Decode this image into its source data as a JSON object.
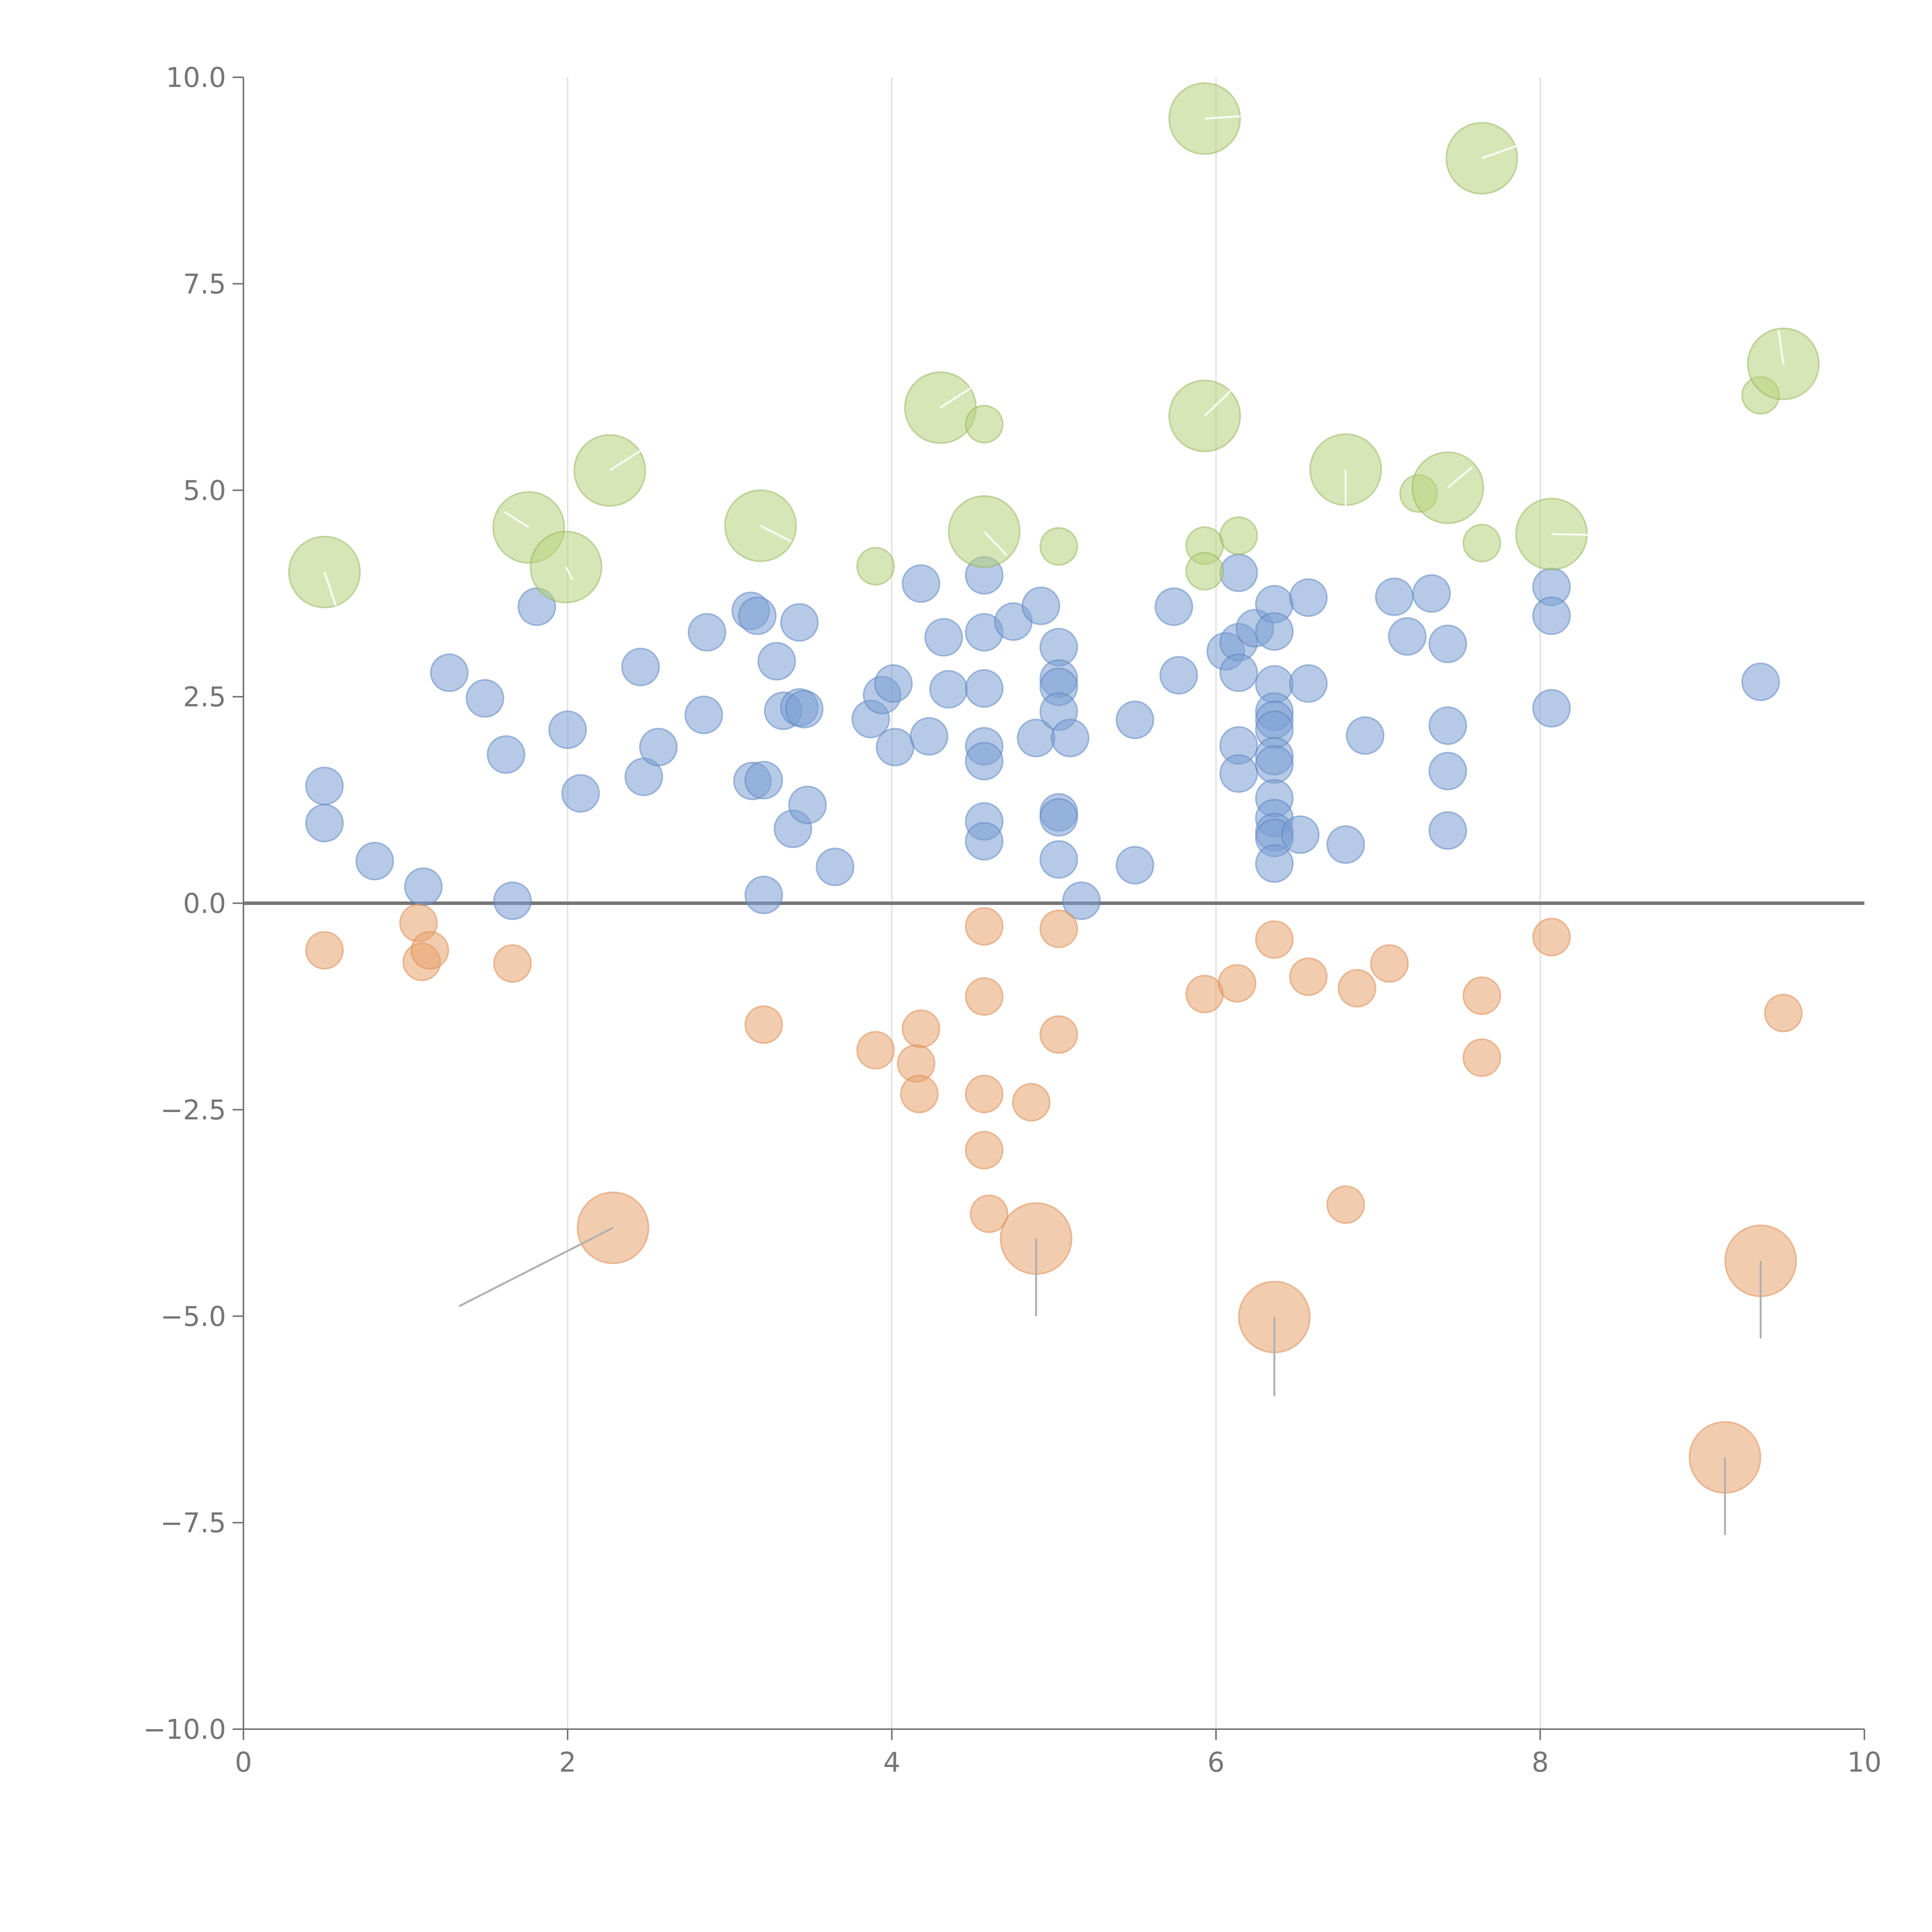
{
  "colors": {
    "positive": "#7a9ed3",
    "negative": "#e8a36e",
    "highlight": "#b6d17c",
    "positive_stroke": "#5b82bf",
    "negative_stroke": "#d98a4f",
    "highlight_stroke": "#93b25a",
    "axis": "#767676",
    "grid": "#dcdcdc"
  },
  "chart_data": {
    "type": "scatter",
    "subtype": "bubble",
    "title": "",
    "xlabel": "",
    "ylabel": "",
    "xlim": [
      0,
      10
    ],
    "ylim": [
      -10,
      10
    ],
    "x_ticks": [
      0,
      2,
      4,
      6,
      8,
      10
    ],
    "x_tick_labels": [
      "0",
      "2",
      "4",
      "6",
      "8",
      "10"
    ],
    "y_ticks": [
      10,
      7.5,
      5,
      2.5,
      0,
      -2.5,
      -5,
      -7.5,
      -10
    ],
    "y_tick_labels": [
      "10.0",
      "7.5",
      "5.0",
      "2.5",
      "0.0",
      "−2.5",
      "−5.0",
      "−7.5",
      "−10.0"
    ],
    "grid": "vertical",
    "reference_line_y": 0,
    "series": [
      {
        "name": "positive",
        "points": [
          {
            "x": 0.5,
            "y": 1.42,
            "s": 1
          },
          {
            "x": 0.5,
            "y": 0.97,
            "s": 1
          },
          {
            "x": 0.81,
            "y": 0.51,
            "s": 1
          },
          {
            "x": 1.11,
            "y": 0.2,
            "s": 1
          },
          {
            "x": 1.27,
            "y": 2.79,
            "s": 1
          },
          {
            "x": 1.49,
            "y": 2.48,
            "s": 1
          },
          {
            "x": 1.62,
            "y": 1.8,
            "s": 1
          },
          {
            "x": 1.66,
            "y": 0.03,
            "s": 1
          },
          {
            "x": 1.81,
            "y": 3.59,
            "s": 1
          },
          {
            "x": 2.0,
            "y": 2.1,
            "s": 1
          },
          {
            "x": 2.08,
            "y": 1.33,
            "s": 1
          },
          {
            "x": 2.45,
            "y": 2.86,
            "s": 1
          },
          {
            "x": 2.47,
            "y": 1.53,
            "s": 1
          },
          {
            "x": 2.56,
            "y": 1.89,
            "s": 1
          },
          {
            "x": 2.84,
            "y": 2.28,
            "s": 1
          },
          {
            "x": 2.86,
            "y": 3.28,
            "s": 1
          },
          {
            "x": 3.13,
            "y": 3.54,
            "s": 1
          },
          {
            "x": 3.17,
            "y": 3.48,
            "s": 1
          },
          {
            "x": 3.14,
            "y": 1.48,
            "s": 1
          },
          {
            "x": 3.21,
            "y": 1.49,
            "s": 1
          },
          {
            "x": 3.21,
            "y": 0.1,
            "s": 1
          },
          {
            "x": 3.29,
            "y": 2.93,
            "s": 1
          },
          {
            "x": 3.33,
            "y": 2.33,
            "s": 1
          },
          {
            "x": 3.39,
            "y": 0.9,
            "s": 1
          },
          {
            "x": 3.43,
            "y": 3.4,
            "s": 1
          },
          {
            "x": 3.43,
            "y": 2.37,
            "s": 1
          },
          {
            "x": 3.46,
            "y": 2.35,
            "s": 1
          },
          {
            "x": 3.48,
            "y": 1.19,
            "s": 1
          },
          {
            "x": 3.65,
            "y": 0.44,
            "s": 1
          },
          {
            "x": 3.87,
            "y": 2.23,
            "s": 1
          },
          {
            "x": 3.94,
            "y": 2.52,
            "s": 1
          },
          {
            "x": 4.01,
            "y": 2.66,
            "s": 1
          },
          {
            "x": 4.02,
            "y": 1.89,
            "s": 1
          },
          {
            "x": 4.18,
            "y": 3.87,
            "s": 1
          },
          {
            "x": 4.23,
            "y": 2.02,
            "s": 1
          },
          {
            "x": 4.32,
            "y": 3.22,
            "s": 1
          },
          {
            "x": 4.35,
            "y": 2.59,
            "s": 1
          },
          {
            "x": 4.57,
            "y": 3.97,
            "s": 1
          },
          {
            "x": 4.57,
            "y": 3.28,
            "s": 1
          },
          {
            "x": 4.57,
            "y": 2.6,
            "s": 1
          },
          {
            "x": 4.57,
            "y": 1.9,
            "s": 1
          },
          {
            "x": 4.57,
            "y": 1.72,
            "s": 1
          },
          {
            "x": 4.57,
            "y": 0.99,
            "s": 1
          },
          {
            "x": 4.57,
            "y": 0.75,
            "s": 1
          },
          {
            "x": 4.75,
            "y": 3.41,
            "s": 1
          },
          {
            "x": 4.89,
            "y": 2.0,
            "s": 1
          },
          {
            "x": 4.92,
            "y": 3.6,
            "s": 1
          },
          {
            "x": 5.03,
            "y": 3.1,
            "s": 1
          },
          {
            "x": 5.03,
            "y": 2.72,
            "s": 1
          },
          {
            "x": 5.03,
            "y": 2.62,
            "s": 1
          },
          {
            "x": 5.03,
            "y": 2.32,
            "s": 1
          },
          {
            "x": 5.03,
            "y": 1.1,
            "s": 1
          },
          {
            "x": 5.03,
            "y": 1.04,
            "s": 1
          },
          {
            "x": 5.03,
            "y": 0.53,
            "s": 1
          },
          {
            "x": 5.1,
            "y": 2.0,
            "s": 1
          },
          {
            "x": 5.17,
            "y": 0.03,
            "s": 1
          },
          {
            "x": 5.5,
            "y": 2.22,
            "s": 1
          },
          {
            "x": 5.5,
            "y": 0.46,
            "s": 1
          },
          {
            "x": 5.74,
            "y": 3.59,
            "s": 1
          },
          {
            "x": 5.77,
            "y": 2.76,
            "s": 1
          },
          {
            "x": 6.06,
            "y": 3.05,
            "s": 1
          },
          {
            "x": 6.14,
            "y": 4.0,
            "s": 1
          },
          {
            "x": 6.14,
            "y": 3.16,
            "s": 1
          },
          {
            "x": 6.14,
            "y": 2.79,
            "s": 1
          },
          {
            "x": 6.14,
            "y": 1.91,
            "s": 1
          },
          {
            "x": 6.14,
            "y": 1.57,
            "s": 1
          },
          {
            "x": 6.24,
            "y": 3.33,
            "s": 1
          },
          {
            "x": 6.36,
            "y": 3.62,
            "s": 1
          },
          {
            "x": 6.36,
            "y": 3.29,
            "s": 1
          },
          {
            "x": 6.36,
            "y": 2.65,
            "s": 1
          },
          {
            "x": 6.36,
            "y": 2.32,
            "s": 1
          },
          {
            "x": 6.36,
            "y": 2.22,
            "s": 1
          },
          {
            "x": 6.36,
            "y": 2.1,
            "s": 1
          },
          {
            "x": 6.36,
            "y": 1.78,
            "s": 1
          },
          {
            "x": 6.36,
            "y": 1.68,
            "s": 1
          },
          {
            "x": 6.36,
            "y": 1.27,
            "s": 1
          },
          {
            "x": 6.36,
            "y": 1.03,
            "s": 1
          },
          {
            "x": 6.36,
            "y": 0.86,
            "s": 1
          },
          {
            "x": 6.36,
            "y": 0.79,
            "s": 1
          },
          {
            "x": 6.36,
            "y": 0.48,
            "s": 1
          },
          {
            "x": 6.52,
            "y": 0.83,
            "s": 1
          },
          {
            "x": 6.57,
            "y": 3.7,
            "s": 1
          },
          {
            "x": 6.57,
            "y": 2.66,
            "s": 1
          },
          {
            "x": 6.8,
            "y": 0.71,
            "s": 1
          },
          {
            "x": 6.92,
            "y": 2.03,
            "s": 1
          },
          {
            "x": 7.1,
            "y": 3.71,
            "s": 1
          },
          {
            "x": 7.18,
            "y": 3.23,
            "s": 1
          },
          {
            "x": 7.33,
            "y": 3.75,
            "s": 1
          },
          {
            "x": 7.43,
            "y": 3.14,
            "s": 1
          },
          {
            "x": 7.43,
            "y": 2.15,
            "s": 1
          },
          {
            "x": 7.43,
            "y": 1.6,
            "s": 1
          },
          {
            "x": 7.43,
            "y": 0.88,
            "s": 1
          },
          {
            "x": 8.07,
            "y": 3.83,
            "s": 1
          },
          {
            "x": 8.07,
            "y": 3.48,
            "s": 1
          },
          {
            "x": 8.07,
            "y": 2.36,
            "s": 1
          },
          {
            "x": 9.36,
            "y": 2.68,
            "s": 1
          }
        ]
      },
      {
        "name": "negative",
        "points": [
          {
            "x": 0.5,
            "y": -0.57,
            "s": 1
          },
          {
            "x": 1.08,
            "y": -0.24,
            "s": 1
          },
          {
            "x": 1.1,
            "y": -0.71,
            "s": 1
          },
          {
            "x": 1.15,
            "y": -0.57,
            "s": 1
          },
          {
            "x": 1.66,
            "y": -0.73,
            "s": 1
          },
          {
            "x": 2.28,
            "y": -3.93,
            "s": 2
          },
          {
            "x": 3.21,
            "y": -1.47,
            "s": 1
          },
          {
            "x": 3.9,
            "y": -1.78,
            "s": 1
          },
          {
            "x": 4.15,
            "y": -1.94,
            "s": 1
          },
          {
            "x": 4.18,
            "y": -1.52,
            "s": 1
          },
          {
            "x": 4.17,
            "y": -2.31,
            "s": 1
          },
          {
            "x": 4.57,
            "y": -0.28,
            "s": 1
          },
          {
            "x": 4.57,
            "y": -1.13,
            "s": 1
          },
          {
            "x": 4.57,
            "y": -2.31,
            "s": 1
          },
          {
            "x": 4.57,
            "y": -2.99,
            "s": 1
          },
          {
            "x": 4.6,
            "y": -3.76,
            "s": 1
          },
          {
            "x": 4.86,
            "y": -2.41,
            "s": 1
          },
          {
            "x": 4.89,
            "y": -4.06,
            "s": 2
          },
          {
            "x": 5.03,
            "y": -0.31,
            "s": 1
          },
          {
            "x": 5.03,
            "y": -1.59,
            "s": 1
          },
          {
            "x": 5.93,
            "y": -1.1,
            "s": 1
          },
          {
            "x": 6.13,
            "y": -0.97,
            "s": 1
          },
          {
            "x": 6.36,
            "y": -0.44,
            "s": 1
          },
          {
            "x": 6.36,
            "y": -5.01,
            "s": 2
          },
          {
            "x": 6.57,
            "y": -0.89,
            "s": 1
          },
          {
            "x": 6.8,
            "y": -3.65,
            "s": 1
          },
          {
            "x": 6.87,
            "y": -1.03,
            "s": 1
          },
          {
            "x": 7.07,
            "y": -0.73,
            "s": 1
          },
          {
            "x": 7.64,
            "y": -1.12,
            "s": 1
          },
          {
            "x": 7.64,
            "y": -1.87,
            "s": 1
          },
          {
            "x": 8.07,
            "y": -0.41,
            "s": 1
          },
          {
            "x": 9.14,
            "y": -6.71,
            "s": 2
          },
          {
            "x": 9.36,
            "y": -4.33,
            "s": 2
          },
          {
            "x": 9.5,
            "y": -1.33,
            "s": 1
          }
        ]
      },
      {
        "name": "highlight",
        "points": [
          {
            "x": 0.5,
            "y": 4.01,
            "s": 2
          },
          {
            "x": 1.76,
            "y": 4.55,
            "s": 2
          },
          {
            "x": 1.99,
            "y": 4.07,
            "s": 2
          },
          {
            "x": 2.26,
            "y": 5.24,
            "s": 2
          },
          {
            "x": 3.19,
            "y": 4.57,
            "s": 2
          },
          {
            "x": 3.9,
            "y": 4.08,
            "s": 1
          },
          {
            "x": 4.3,
            "y": 6.0,
            "s": 2
          },
          {
            "x": 4.57,
            "y": 5.8,
            "s": 1
          },
          {
            "x": 4.57,
            "y": 4.5,
            "s": 2
          },
          {
            "x": 5.03,
            "y": 4.32,
            "s": 1
          },
          {
            "x": 5.93,
            "y": 9.5,
            "s": 2
          },
          {
            "x": 5.93,
            "y": 5.9,
            "s": 2
          },
          {
            "x": 5.93,
            "y": 4.33,
            "s": 1
          },
          {
            "x": 5.93,
            "y": 4.02,
            "s": 1
          },
          {
            "x": 6.14,
            "y": 4.45,
            "s": 1
          },
          {
            "x": 6.8,
            "y": 5.25,
            "s": 2
          },
          {
            "x": 7.25,
            "y": 4.96,
            "s": 1
          },
          {
            "x": 7.43,
            "y": 5.03,
            "s": 2
          },
          {
            "x": 7.64,
            "y": 9.02,
            "s": 2
          },
          {
            "x": 7.64,
            "y": 4.36,
            "s": 1
          },
          {
            "x": 8.07,
            "y": 4.47,
            "s": 2
          },
          {
            "x": 9.36,
            "y": 6.15,
            "s": 1
          },
          {
            "x": 9.5,
            "y": 6.53,
            "s": 2
          }
        ]
      }
    ],
    "leader_lines": [
      {
        "from": [
          2.28,
          -3.93
        ],
        "to": [
          1.33,
          -4.88
        ],
        "color": "axis"
      },
      {
        "from": [
          4.89,
          -4.06
        ],
        "to": [
          4.89,
          -5.0
        ],
        "color": "axis"
      },
      {
        "from": [
          6.36,
          -5.01
        ],
        "to": [
          6.36,
          -5.97
        ],
        "color": "axis"
      },
      {
        "from": [
          9.36,
          -4.33
        ],
        "to": [
          9.36,
          -5.27
        ],
        "color": "axis"
      },
      {
        "from": [
          9.14,
          -6.71
        ],
        "to": [
          9.14,
          -7.65
        ],
        "color": "axis"
      },
      {
        "from": [
          0.5,
          4.01
        ],
        "to": [
          0.57,
          3.6
        ],
        "color": "white"
      },
      {
        "from": [
          1.76,
          4.55
        ],
        "to": [
          1.61,
          4.74
        ],
        "color": "white"
      },
      {
        "from": [
          1.99,
          4.07
        ],
        "to": [
          2.03,
          3.92
        ],
        "color": "white"
      },
      {
        "from": [
          2.26,
          5.24
        ],
        "to": [
          2.45,
          5.48
        ],
        "color": "white"
      },
      {
        "from": [
          3.19,
          4.57
        ],
        "to": [
          3.38,
          4.38
        ],
        "color": "white"
      },
      {
        "from": [
          4.3,
          6.0
        ],
        "to": [
          4.52,
          6.28
        ],
        "color": "white"
      },
      {
        "from": [
          4.57,
          4.5
        ],
        "to": [
          4.71,
          4.21
        ],
        "color": "white"
      },
      {
        "from": [
          5.93,
          9.5
        ],
        "to": [
          6.17,
          9.53
        ],
        "color": "white"
      },
      {
        "from": [
          5.93,
          5.9
        ],
        "to": [
          6.11,
          6.24
        ],
        "color": "white"
      },
      {
        "from": [
          6.8,
          5.25
        ],
        "to": [
          6.8,
          4.8
        ],
        "color": "white"
      },
      {
        "from": [
          7.43,
          5.03
        ],
        "to": [
          7.58,
          5.28
        ],
        "color": "white"
      },
      {
        "from": [
          7.64,
          9.02
        ],
        "to": [
          7.9,
          9.2
        ],
        "color": "white"
      },
      {
        "from": [
          8.07,
          4.47
        ],
        "to": [
          8.3,
          4.46
        ],
        "color": "white"
      },
      {
        "from": [
          9.5,
          6.53
        ],
        "to": [
          9.47,
          6.94
        ],
        "color": "white"
      }
    ]
  }
}
